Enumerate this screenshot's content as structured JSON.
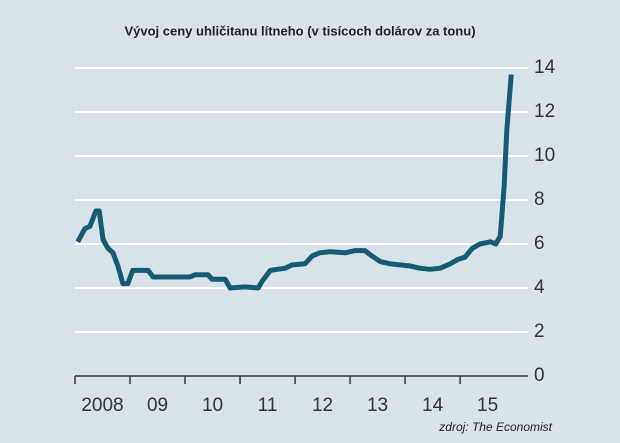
{
  "chart_data": {
    "type": "line",
    "title": "Vývoj ceny uhličitanu lítneho (v tisícoch dolárov za tonu)",
    "source": "zdroj: The Economist",
    "x": [
      2008.05,
      2008.18,
      2008.27,
      2008.38,
      2008.44,
      2008.51,
      2008.6,
      2008.69,
      2008.78,
      2008.87,
      2008.96,
      2009.05,
      2009.33,
      2009.42,
      2010.09,
      2010.18,
      2010.42,
      2010.49,
      2010.73,
      2010.82,
      2011.09,
      2011.33,
      2011.4,
      2011.55,
      2011.82,
      2011.95,
      2012.18,
      2012.31,
      2012.45,
      2012.64,
      2012.91,
      2013.09,
      2013.27,
      2013.4,
      2013.55,
      2013.73,
      2013.91,
      2014.09,
      2014.27,
      2014.45,
      2014.64,
      2014.82,
      2014.96,
      2015.09,
      2015.22,
      2015.36,
      2015.55,
      2015.65,
      2015.73,
      2015.8,
      2015.85,
      2015.93
    ],
    "series": [
      {
        "color": "#175a73",
        "values": [
          6.1,
          6.7,
          6.8,
          7.5,
          7.5,
          6.2,
          5.8,
          5.6,
          5.0,
          4.2,
          4.2,
          4.8,
          4.8,
          4.5,
          4.5,
          4.6,
          4.6,
          4.4,
          4.4,
          4.0,
          4.05,
          4.0,
          4.3,
          4.8,
          4.9,
          5.05,
          5.1,
          5.45,
          5.6,
          5.65,
          5.6,
          5.7,
          5.7,
          5.45,
          5.2,
          5.1,
          5.05,
          5.0,
          4.9,
          4.85,
          4.9,
          5.1,
          5.3,
          5.4,
          5.8,
          6.0,
          6.1,
          6.0,
          6.35,
          8.6,
          11.2,
          13.7
        ]
      }
    ],
    "xlim": [
      2008,
      2016.18
    ],
    "xticks": [
      {
        "value": 2008,
        "label": "2008"
      },
      {
        "value": 2009,
        "label": "09"
      },
      {
        "value": 2010,
        "label": "10"
      },
      {
        "value": 2011,
        "label": "11"
      },
      {
        "value": 2012,
        "label": "12"
      },
      {
        "value": 2013,
        "label": "13"
      },
      {
        "value": 2014,
        "label": "14"
      },
      {
        "value": 2015,
        "label": "15"
      }
    ],
    "ylim": [
      0,
      14
    ],
    "yticks": [
      0,
      2,
      4,
      6,
      8,
      10,
      12,
      14
    ],
    "grid": true
  }
}
